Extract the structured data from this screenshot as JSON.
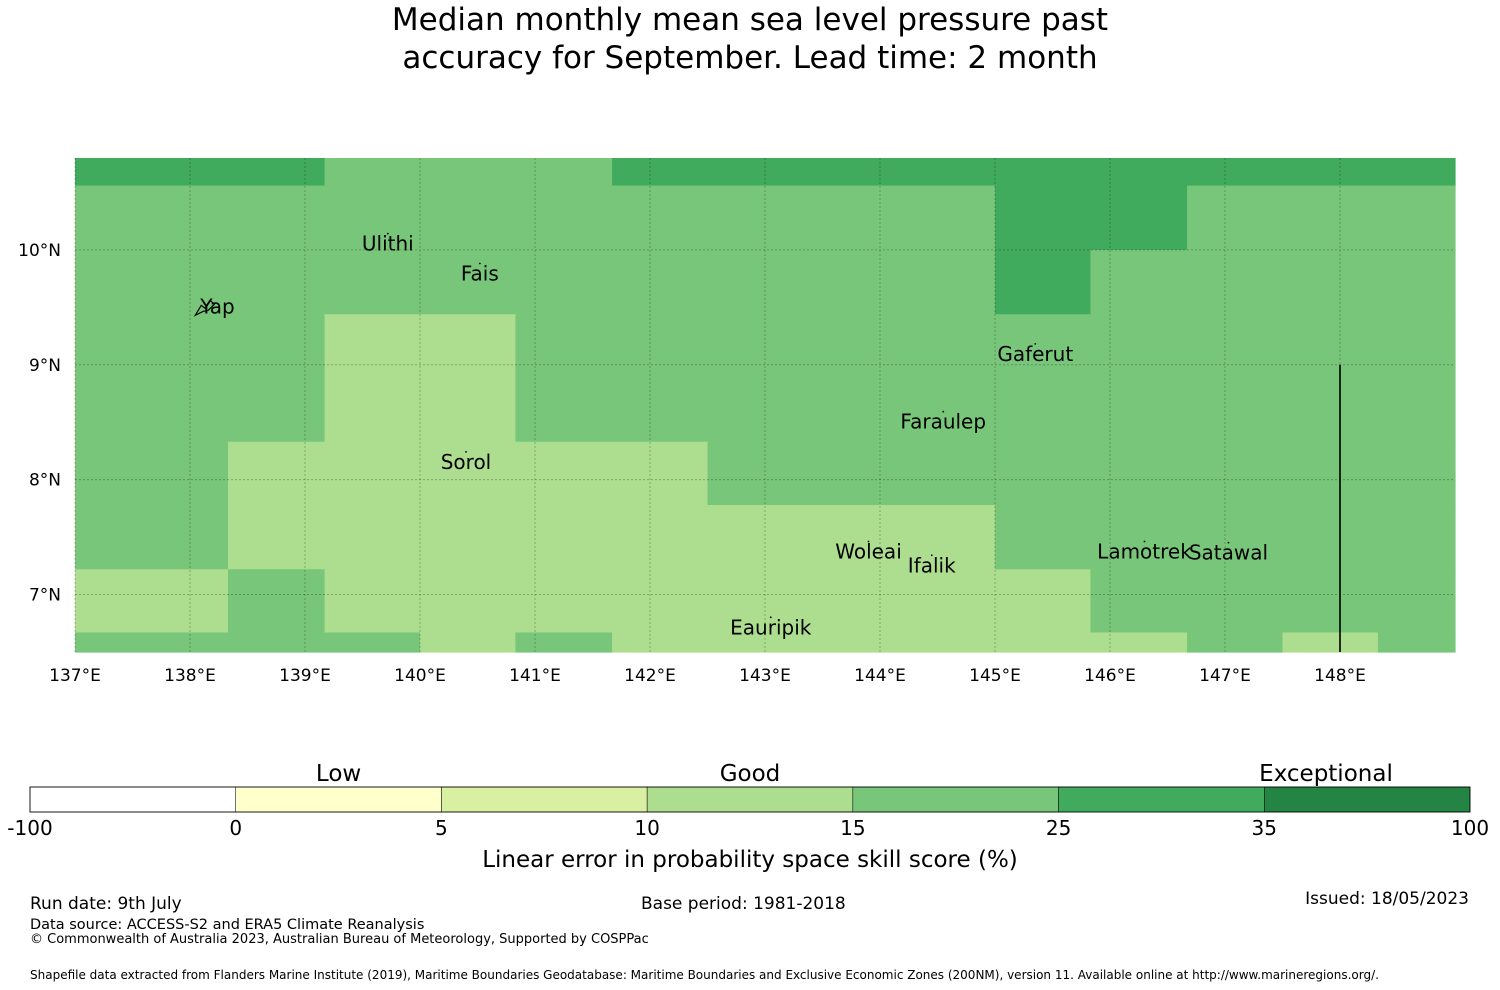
{
  "title": {
    "line1": "Median monthly mean sea level pressure past",
    "line2": "accuracy for September. Lead time: 2 month"
  },
  "map": {
    "lon_range": [
      137.0,
      149.0
    ],
    "lat_range": [
      6.5,
      10.8
    ],
    "lon_ticks": [
      137,
      138,
      139,
      140,
      141,
      142,
      143,
      144,
      145,
      146,
      147,
      148
    ],
    "lon_tick_labels": [
      "137°E",
      "138°E",
      "139°E",
      "140°E",
      "141°E",
      "142°E",
      "143°E",
      "144°E",
      "145°E",
      "146°E",
      "147°E",
      "148°E"
    ],
    "lat_ticks": [
      7,
      8,
      9,
      10
    ],
    "lat_tick_labels": [
      "7°N",
      "8°N",
      "9°N",
      "10°N"
    ],
    "grid_lon_edges": [
      137.0,
      138.33,
      139.17,
      140.0,
      140.83,
      141.67,
      142.5,
      143.33,
      144.17,
      145.0,
      145.83,
      146.67,
      147.5,
      148.33,
      149.0
    ],
    "grid_lat_edges": [
      10.8,
      10.56,
      10.0,
      9.44,
      8.33,
      7.78,
      7.22,
      6.67,
      6.5
    ],
    "grid_classes": [
      [
        5,
        5,
        4,
        4,
        4,
        5,
        5,
        5,
        5,
        5,
        5,
        5,
        5,
        5
      ],
      [
        4,
        4,
        4,
        4,
        4,
        4,
        4,
        4,
        4,
        5,
        5,
        4,
        4,
        4
      ],
      [
        4,
        4,
        4,
        4,
        4,
        4,
        4,
        4,
        4,
        5,
        4,
        4,
        4,
        4
      ],
      [
        4,
        4,
        3,
        3,
        4,
        4,
        4,
        4,
        4,
        4,
        4,
        4,
        4,
        4
      ],
      [
        4,
        3,
        3,
        3,
        3,
        3,
        4,
        4,
        4,
        4,
        4,
        4,
        4,
        4
      ],
      [
        4,
        3,
        3,
        3,
        3,
        3,
        3,
        3,
        3,
        4,
        4,
        4,
        4,
        4
      ],
      [
        3,
        4,
        3,
        3,
        3,
        3,
        3,
        3,
        3,
        3,
        4,
        4,
        4,
        4
      ],
      [
        4,
        4,
        4,
        3,
        4,
        3,
        3,
        3,
        3,
        3,
        3,
        4,
        3,
        4
      ]
    ],
    "boundary_line": {
      "lon": 148.0,
      "lat_from": 6.5,
      "lat_to": 9.0
    },
    "places": [
      {
        "name": "Yap",
        "lon": 138.15,
        "lat": 9.5
      },
      {
        "name": "Ulithi",
        "lon": 139.72,
        "lat": 10.02
      },
      {
        "name": "Fais",
        "lon": 140.52,
        "lat": 9.76
      },
      {
        "name": "Gaferut",
        "lon": 145.35,
        "lat": 9.06
      },
      {
        "name": "Faraulep",
        "lon": 144.55,
        "lat": 8.47
      },
      {
        "name": "Sorol",
        "lon": 140.4,
        "lat": 8.12
      },
      {
        "name": "Woleai",
        "lon": 143.9,
        "lat": 7.34
      },
      {
        "name": "Ifalik",
        "lon": 144.45,
        "lat": 7.22
      },
      {
        "name": "Lamotrek",
        "lon": 146.3,
        "lat": 7.34
      },
      {
        "name": "Satawal",
        "lon": 147.03,
        "lat": 7.33
      },
      {
        "name": "Eauripik",
        "lon": 143.05,
        "lat": 6.68
      }
    ]
  },
  "legend": {
    "categories": [
      "Low",
      "Good",
      "Exceptional"
    ],
    "boundaries": [
      "-100",
      "0",
      "5",
      "10",
      "15",
      "25",
      "35",
      "100"
    ],
    "colors": [
      "#ffffff",
      "#ffffcc",
      "#d9f0a3",
      "#addd8e",
      "#78c679",
      "#41ab5d",
      "#238443"
    ],
    "label": "Linear error in probability space skill score (%)"
  },
  "footer": {
    "run_date": "Run date: 9th July",
    "base_period": "Base period: 1981-2018",
    "issued": "Issued: 18/05/2023",
    "data_source": "Data source: ACCESS-S2 and ERA5 Climate Reanalysis",
    "copyright": "© Commonwealth of Australia 2023, Australian Bureau of Meteorology, Supported by COSPPac",
    "shapefile": "Shapefile data extracted from Flanders Marine Institute (2019), Maritime Boundaries Geodatabase: Maritime Boundaries and Exclusive Economic Zones (200NM), version 11. Available online at http://www.marineregions.org/."
  }
}
